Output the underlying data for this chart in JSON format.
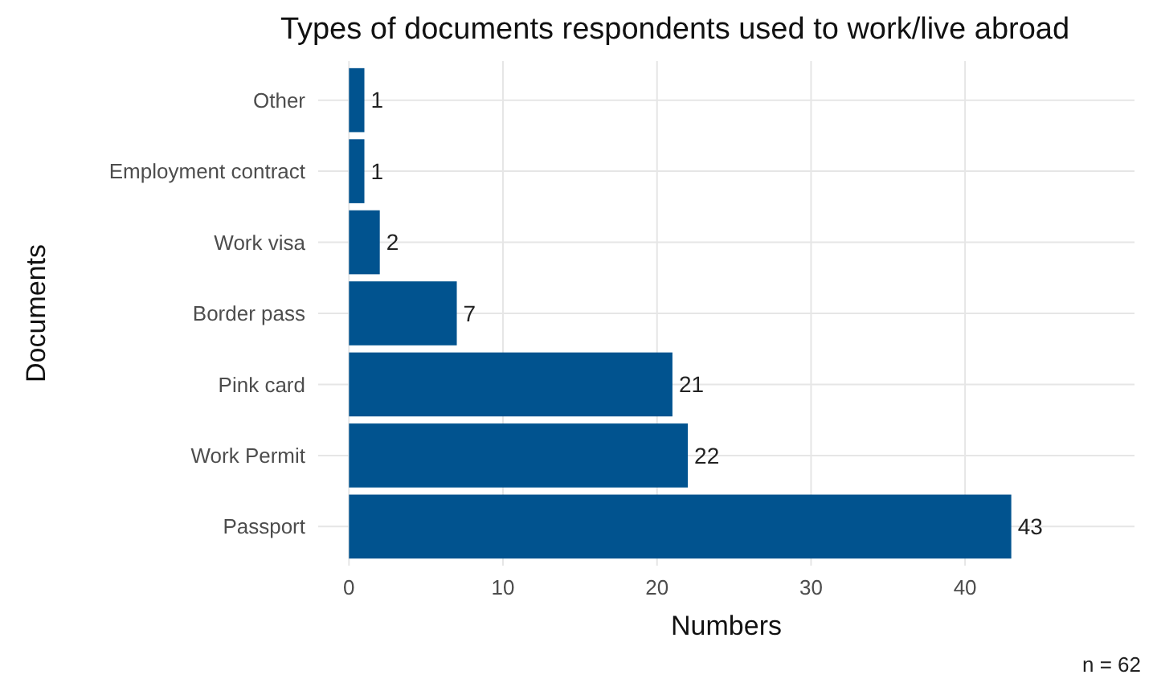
{
  "chart_data": {
    "type": "bar",
    "orientation": "horizontal",
    "title": "Types of documents respondents used to work/live abroad",
    "xlabel": "Numbers",
    "ylabel": "Documents",
    "categories": [
      "Other",
      "Employment contract",
      "Work visa",
      "Border pass",
      "Pink card",
      "Work Permit",
      "Passport"
    ],
    "values": [
      1,
      1,
      2,
      7,
      21,
      22,
      43
    ],
    "color": "#01538f",
    "data_labels": true,
    "xlim": [
      -2,
      51
    ],
    "xticks": [
      0,
      10,
      20,
      30,
      40
    ],
    "grid": true,
    "annotations": [
      "n = 62"
    ]
  }
}
